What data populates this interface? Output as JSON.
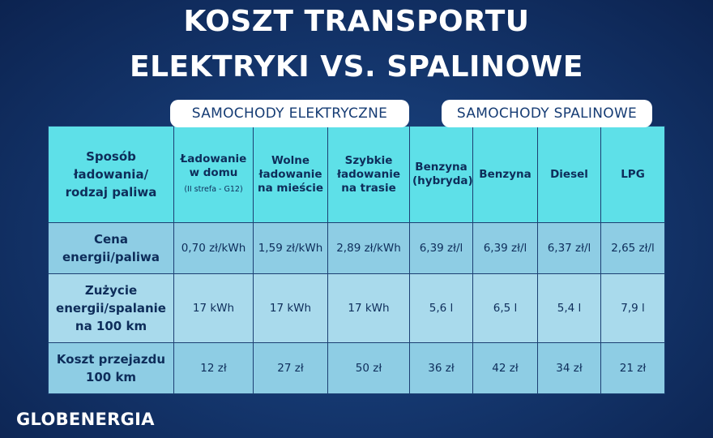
{
  "title_line1": "KOSZT TRANSPORTU",
  "title_line2": "ELEKTRYKI VS. SPALINOWE",
  "groups": {
    "electric": "SAMOCHODY ELEKTRYCZNE",
    "combustion": "SAMOCHODY SPALINOWE"
  },
  "header": {
    "rowhead": "Sposób ładowania/ rodzaj paliwa",
    "columns": [
      {
        "label": "Ładowanie w domu",
        "sub": "(II strefa - G12)"
      },
      {
        "label": "Wolne ładowanie na mieście",
        "sub": ""
      },
      {
        "label": "Szybkie ładowanie na trasie",
        "sub": ""
      },
      {
        "label": "Benzyna (hybryda)",
        "sub": ""
      },
      {
        "label": "Benzyna",
        "sub": ""
      },
      {
        "label": "Diesel",
        "sub": ""
      },
      {
        "label": "LPG",
        "sub": ""
      }
    ]
  },
  "rows": [
    {
      "label": "Cena energii/paliwa",
      "values": [
        "0,70 zł/kWh",
        "1,59 zł/kWh",
        "2,89 zł/kWh",
        "6,39 zł/l",
        "6,39 zł/l",
        "6,37 zł/l",
        "2,65 zł/l"
      ]
    },
    {
      "label": "Zużycie energii/spalanie na 100 km",
      "values": [
        "17 kWh",
        "17 kWh",
        "17 kWh",
        "5,6 l",
        "6,5 l",
        "5,4 l",
        "7,9 l"
      ]
    },
    {
      "label": "Koszt przejazdu 100 km",
      "values": [
        "12 zł",
        "27 zł",
        "50 zł",
        "36 zł",
        "42 zł",
        "34 zł",
        "21 zł"
      ]
    }
  ],
  "brand": "GLOBENERGIA"
}
